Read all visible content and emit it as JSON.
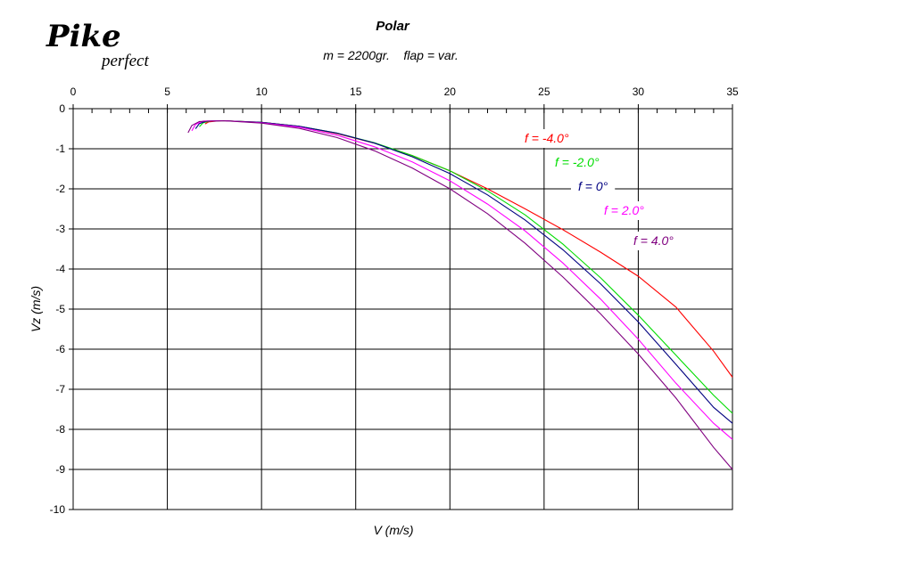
{
  "logo": {
    "main": "Pike",
    "sub": "perfect"
  },
  "chart_data": {
    "type": "line",
    "title": "Polar",
    "subtitle": "m = 2200gr.    flap = var.",
    "xlabel": "V (m/s)",
    "ylabel": "Vz (m/s)",
    "xlim": [
      0,
      35
    ],
    "ylim": [
      -10,
      0
    ],
    "x_ticks": [
      0,
      5,
      10,
      15,
      20,
      25,
      30,
      35
    ],
    "y_ticks": [
      0,
      -1,
      -2,
      -3,
      -4,
      -5,
      -6,
      -7,
      -8,
      -9,
      -10
    ],
    "x_axis_position": "top",
    "grid": true,
    "legend_placement": "in-plot, right, staggered labels",
    "series": [
      {
        "name": "f = -4.0°",
        "color": "#ff0000",
        "points": [
          [
            7.0,
            -0.38
          ],
          [
            7.2,
            -0.33
          ],
          [
            7.6,
            -0.31
          ],
          [
            8,
            -0.3
          ],
          [
            10,
            -0.34
          ],
          [
            12,
            -0.44
          ],
          [
            14,
            -0.62
          ],
          [
            16,
            -0.86
          ],
          [
            18,
            -1.17
          ],
          [
            20,
            -1.55
          ],
          [
            22,
            -2.0
          ],
          [
            24,
            -2.5
          ],
          [
            26,
            -3.02
          ],
          [
            28,
            -3.58
          ],
          [
            30,
            -4.18
          ],
          [
            32,
            -4.95
          ],
          [
            34,
            -6.05
          ],
          [
            35,
            -6.7
          ]
        ]
      },
      {
        "name": "f = -2.0°",
        "color": "#00dd00",
        "points": [
          [
            6.7,
            -0.45
          ],
          [
            6.9,
            -0.35
          ],
          [
            7.3,
            -0.31
          ],
          [
            8,
            -0.3
          ],
          [
            10,
            -0.34
          ],
          [
            12,
            -0.44
          ],
          [
            14,
            -0.61
          ],
          [
            16,
            -0.85
          ],
          [
            18,
            -1.17
          ],
          [
            20,
            -1.55
          ],
          [
            22,
            -2.05
          ],
          [
            24,
            -2.65
          ],
          [
            26,
            -3.38
          ],
          [
            28,
            -4.22
          ],
          [
            30,
            -5.15
          ],
          [
            32,
            -6.15
          ],
          [
            34,
            -7.15
          ],
          [
            35,
            -7.6
          ]
        ]
      },
      {
        "name": "f = 0°",
        "color": "#000080",
        "points": [
          [
            6.5,
            -0.5
          ],
          [
            6.7,
            -0.37
          ],
          [
            7.1,
            -0.31
          ],
          [
            8,
            -0.3
          ],
          [
            10,
            -0.34
          ],
          [
            12,
            -0.44
          ],
          [
            14,
            -0.61
          ],
          [
            16,
            -0.86
          ],
          [
            18,
            -1.2
          ],
          [
            20,
            -1.62
          ],
          [
            22,
            -2.15
          ],
          [
            24,
            -2.78
          ],
          [
            26,
            -3.52
          ],
          [
            28,
            -4.37
          ],
          [
            30,
            -5.32
          ],
          [
            32,
            -6.38
          ],
          [
            34,
            -7.45
          ],
          [
            35,
            -7.85
          ]
        ]
      },
      {
        "name": "f = 2.0°",
        "color": "#ff00ff",
        "points": [
          [
            6.3,
            -0.55
          ],
          [
            6.5,
            -0.39
          ],
          [
            6.9,
            -0.31
          ],
          [
            8,
            -0.3
          ],
          [
            10,
            -0.35
          ],
          [
            12,
            -0.46
          ],
          [
            14,
            -0.66
          ],
          [
            16,
            -0.95
          ],
          [
            18,
            -1.33
          ],
          [
            20,
            -1.8
          ],
          [
            22,
            -2.38
          ],
          [
            24,
            -3.05
          ],
          [
            26,
            -3.85
          ],
          [
            28,
            -4.75
          ],
          [
            30,
            -5.75
          ],
          [
            32,
            -6.85
          ],
          [
            34,
            -7.85
          ],
          [
            35,
            -8.25
          ]
        ]
      },
      {
        "name": "f = 4.0°",
        "color": "#800080",
        "points": [
          [
            6.1,
            -0.6
          ],
          [
            6.3,
            -0.42
          ],
          [
            6.7,
            -0.32
          ],
          [
            8,
            -0.3
          ],
          [
            10,
            -0.36
          ],
          [
            12,
            -0.49
          ],
          [
            14,
            -0.72
          ],
          [
            16,
            -1.05
          ],
          [
            18,
            -1.48
          ],
          [
            20,
            -2.0
          ],
          [
            22,
            -2.62
          ],
          [
            24,
            -3.36
          ],
          [
            26,
            -4.2
          ],
          [
            28,
            -5.12
          ],
          [
            30,
            -6.12
          ],
          [
            32,
            -7.22
          ],
          [
            34,
            -8.45
          ],
          [
            35,
            -9.0
          ]
        ]
      }
    ]
  }
}
